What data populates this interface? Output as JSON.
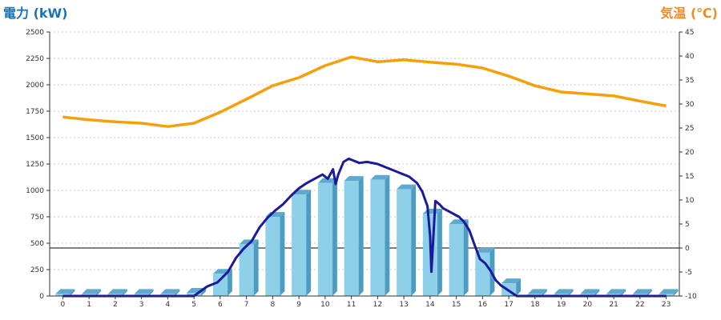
{
  "chart_data": {
    "type": "bar",
    "left_axis_title": "電力 (kW)",
    "right_axis_title": "気温 (℃)",
    "categories": [
      "0",
      "1",
      "2",
      "3",
      "4",
      "5",
      "6",
      "7",
      "8",
      "9",
      "10",
      "11",
      "12",
      "13",
      "14",
      "15",
      "16",
      "17",
      "18",
      "19",
      "20",
      "21",
      "22",
      "23"
    ],
    "y_left": {
      "min": 0,
      "max": 2500,
      "ticks": [
        0,
        250,
        500,
        750,
        1000,
        1250,
        1500,
        1750,
        2000,
        2250,
        2500
      ]
    },
    "y_right": {
      "min": -10,
      "max": 45,
      "ticks": [
        -10,
        -5,
        0,
        5,
        10,
        15,
        20,
        25,
        30,
        35,
        40,
        45
      ]
    },
    "grid": true,
    "bars": {
      "values": [
        20,
        20,
        20,
        20,
        20,
        30,
        210,
        490,
        750,
        960,
        1070,
        1090,
        1100,
        1010,
        780,
        680,
        410,
        120,
        20,
        20,
        20,
        20,
        20,
        20
      ],
      "color": "#8ecfe9",
      "side_color": "#4e9cc2",
      "top_color": "#5fa9cf"
    },
    "power_line": {
      "color": "#1a1a9a",
      "x": [
        0,
        1,
        2,
        3,
        4,
        5,
        5.5,
        5.9,
        6.3,
        6.6,
        6.9,
        7.2,
        7.5,
        7.8,
        8.1,
        8.4,
        8.7,
        9,
        9.3,
        9.6,
        9.9,
        10.1,
        10.3,
        10.4,
        10.5,
        10.7,
        10.9,
        11.1,
        11.3,
        11.6,
        12,
        12.3,
        12.6,
        12.9,
        13.2,
        13.5,
        13.7,
        13.9,
        14,
        14.05,
        14.1,
        14.2,
        14.35,
        14.5,
        14.8,
        15.1,
        15.3,
        15.5,
        15.7,
        15.9,
        16.1,
        16.3,
        16.5,
        16.7,
        17,
        17.3,
        17.6,
        18,
        19,
        20,
        21,
        22,
        23
      ],
      "y": [
        0,
        0,
        0,
        0,
        0,
        0,
        90,
        130,
        230,
        360,
        450,
        520,
        650,
        740,
        810,
        870,
        950,
        1020,
        1070,
        1110,
        1150,
        1110,
        1200,
        1060,
        1150,
        1270,
        1300,
        1280,
        1260,
        1270,
        1250,
        1220,
        1190,
        1160,
        1130,
        1070,
        990,
        850,
        570,
        230,
        450,
        900,
        870,
        830,
        790,
        750,
        700,
        620,
        480,
        350,
        310,
        240,
        150,
        100,
        50,
        0,
        0,
        0,
        0,
        0,
        0,
        0,
        0
      ]
    },
    "temperature_line": {
      "color": "#f5a00a",
      "x": [
        0,
        1,
        2,
        3,
        4,
        5,
        6,
        7,
        8,
        9,
        10,
        11,
        12,
        13,
        14,
        15,
        16,
        17,
        18,
        19,
        20,
        21,
        22,
        23
      ],
      "y": [
        27.3,
        26.7,
        26.3,
        26,
        25.3,
        26,
        28.3,
        31,
        33.8,
        35.5,
        38,
        39.8,
        38.8,
        39.2,
        38.7,
        38.3,
        37.5,
        35.8,
        33.8,
        32.5,
        32.1,
        31.7,
        30.6,
        29.6
      ]
    }
  }
}
